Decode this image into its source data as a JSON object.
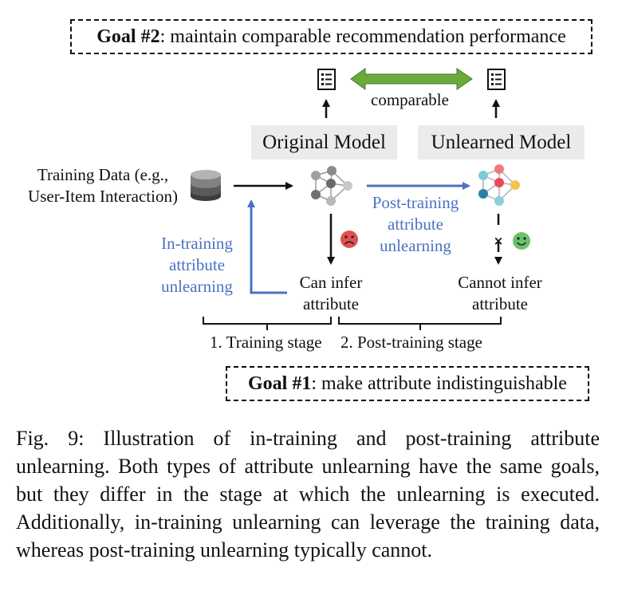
{
  "goal2": {
    "label": "Goal #2",
    "text": ": maintain comparable recommendation performance"
  },
  "goal1": {
    "label": "Goal #1",
    "text": ": make attribute indistinguishable"
  },
  "comparable_label": "comparable",
  "original_model": "Original Model",
  "unlearned_model": "Unlearned Model",
  "training_data": [
    "Training Data (e.g.,",
    "User-Item Interaction)"
  ],
  "in_training": [
    "In-training",
    "attribute",
    "unlearning"
  ],
  "post_training": [
    "Post-training",
    "attribute",
    "unlearning"
  ],
  "can_infer": [
    "Can infer",
    "attribute"
  ],
  "cannot_infer": [
    "Cannot infer",
    "attribute"
  ],
  "stage1": "1. Training stage",
  "stage2": "2. Post-training stage",
  "blocked_mark": "×",
  "caption": "Fig. 9: Illustration of in-training and post-training attribute unlearning. Both types of attribute unlearning have the same goals, but they differ in the stage at which the unlearning is executed. Additionally, in-training unlearning can leverage the training data, whereas post-training unlearning typically cannot.",
  "colors": {
    "blue": "#4a72c4",
    "green_arrow": "#6aaa3a",
    "sad_face": "#e05050",
    "happy_face": "#6cc26c",
    "model_box": "#ebebeb"
  },
  "icons": [
    "document-list-icon",
    "database-icon",
    "neural-network-icon",
    "sad-face-icon",
    "happy-face-icon"
  ]
}
